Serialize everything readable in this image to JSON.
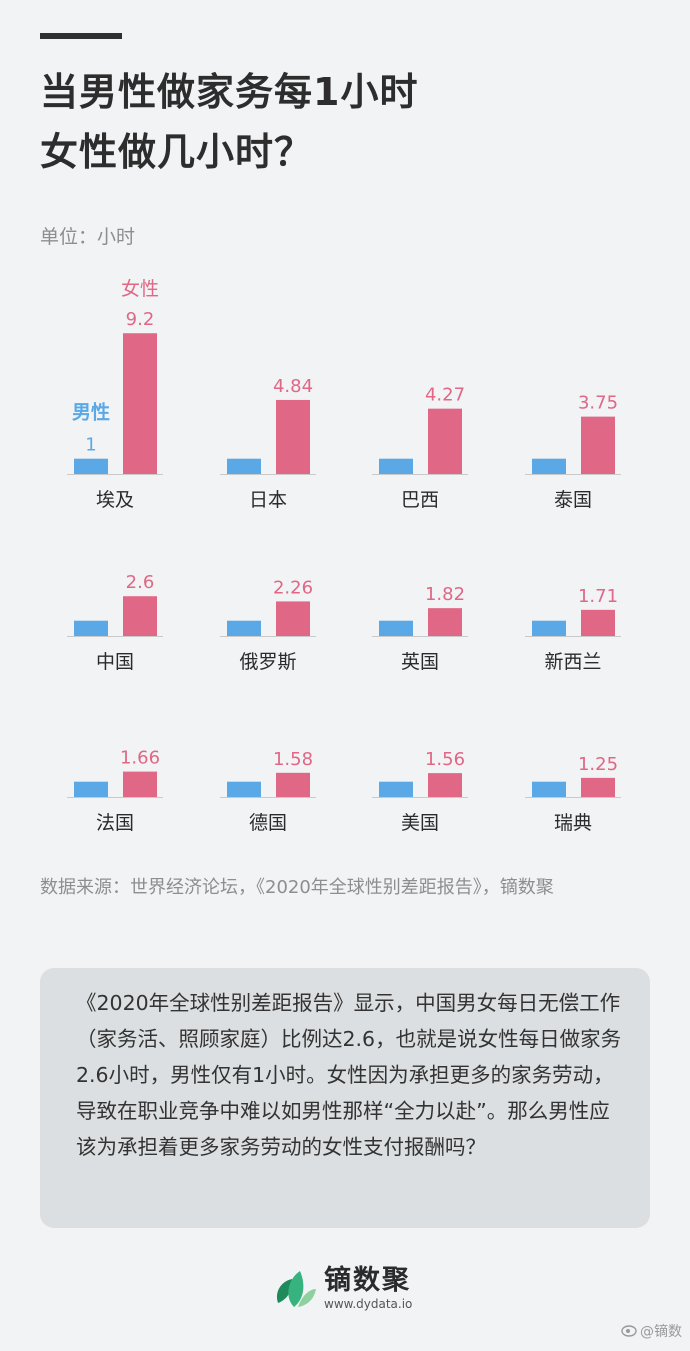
{
  "title": {
    "line1": "当男性做家务每1小时",
    "line2": "女性做几小时？"
  },
  "unit_label": "单位：小时",
  "colors": {
    "male": "#5aa9e6",
    "female": "#e06786",
    "text": "#2b2b2b",
    "muted": "#8e8e8e"
  },
  "chart_data": {
    "type": "bar",
    "unit": "小时",
    "series": [
      {
        "name": "男性",
        "color": "#5aa9e6",
        "values": [
          1,
          1,
          1,
          1,
          1,
          1,
          1,
          1,
          1,
          1,
          1,
          1
        ]
      },
      {
        "name": "女性",
        "color": "#e06786",
        "values": [
          9.2,
          4.84,
          4.27,
          3.75,
          2.6,
          2.26,
          1.82,
          1.71,
          1.66,
          1.58,
          1.56,
          1.25
        ]
      }
    ],
    "categories": [
      "埃及",
      "日本",
      "巴西",
      "泰国",
      "中国",
      "俄罗斯",
      "英国",
      "新西兰",
      "法国",
      "德国",
      "美国",
      "瑞典"
    ],
    "female_labels": [
      "9.2",
      "4.84",
      "4.27",
      "3.75",
      "2.6",
      "2.26",
      "1.82",
      "1.71",
      "1.66",
      "1.58",
      "1.56",
      "1.25"
    ],
    "male_label": "1",
    "layout": "small multiples, 4 columns × 3 rows"
  },
  "source": "数据来源：世界经济论坛，《2020年全球性别差距报告》，镝数聚",
  "note": "《2020年全球性别差距报告》显示，中国男女每日无偿工作（家务活、照顾家庭）比例达2.6，也就是说女性每日做家务2.6小时，男性仅有1小时。女性因为承担更多的家务劳动，导致在职业竞争中难以如男性那样“全力以赴”。那么男性应该为承担着更多家务劳动的女性支付报酬吗？",
  "brand": {
    "name": "镝数聚",
    "url": "www.dydata.io",
    "logo_icon": "leaf-logo-icon"
  },
  "weibo_mark": "@镝数"
}
